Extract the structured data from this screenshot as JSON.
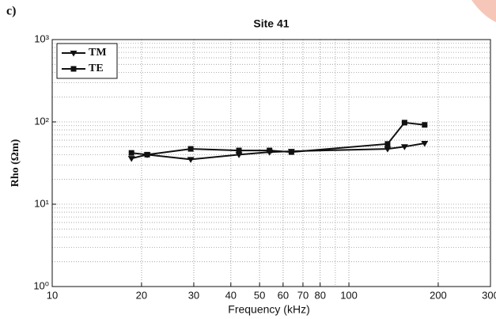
{
  "chart_data": {
    "type": "line",
    "panel_label": "c)",
    "title": "Site 41",
    "x_label": "Frequency (kHz)",
    "y_label": "Rho (Ωm)",
    "x_scale": "log",
    "y_scale": "log",
    "grid": true,
    "legend": "upper left",
    "x": [
      18.5,
      20.9,
      29.3,
      42.6,
      54,
      64,
      135,
      154,
      180
    ],
    "series": [
      {
        "name": "TM",
        "color": "#111111",
        "marker": "triangle-down",
        "values": [
          36,
          40,
          35,
          40,
          43,
          44,
          47,
          50,
          55
        ]
      },
      {
        "name": "TE",
        "color": "#111111",
        "marker": "square",
        "values": [
          42,
          40,
          47,
          45,
          45,
          43,
          54,
          98,
          92
        ]
      }
    ],
    "xlim": [
      10,
      300
    ],
    "xticks": [
      10,
      20,
      30,
      40,
      50,
      60,
      70,
      80,
      100,
      200,
      300
    ],
    "ylim": [
      1,
      1000
    ],
    "yticks": [
      {
        "value": 1,
        "label": "10⁰"
      },
      {
        "value": 10,
        "label": "10¹"
      },
      {
        "value": 100,
        "label": "10²"
      },
      {
        "value": 1000,
        "label": "10³"
      }
    ]
  }
}
